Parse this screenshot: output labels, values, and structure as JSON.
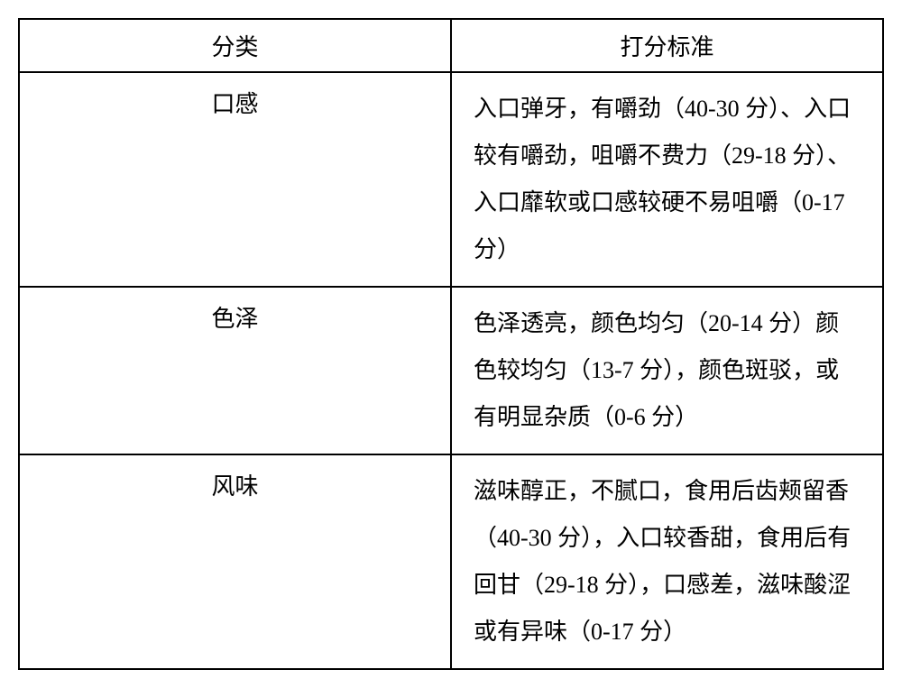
{
  "table": {
    "type": "table",
    "columns": [
      "分类",
      "打分标准"
    ],
    "column_widths": [
      "48%",
      "52%"
    ],
    "rows": [
      {
        "category": "口感",
        "criteria": "入口弹牙，有嚼劲（40-30 分）、入口较有嚼劲，咀嚼不费力（29-18 分）、入口靡软或口感较硬不易咀嚼（0-17 分）"
      },
      {
        "category": "色泽",
        "criteria": "色泽透亮，颜色均匀（20-14 分）颜色较均匀（13-7 分），颜色斑驳，或有明显杂质（0-6 分）"
      },
      {
        "category": "风味",
        "criteria": "滋味醇正，不腻口，食用后齿颊留香（40-30 分），入口较香甜，食用后有回甘（29-18 分），口感差，滋味酸涩或有异味（0-17 分）"
      }
    ],
    "border_color": "#000000",
    "border_width": 2,
    "background_color": "#ffffff",
    "text_color": "#000000",
    "font_family": "SimSun",
    "header_fontsize": 26,
    "body_fontsize": 26,
    "line_height": 2.0
  }
}
